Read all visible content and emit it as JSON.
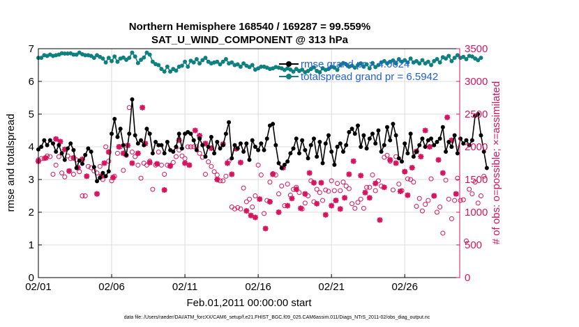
{
  "chart_data": {
    "type": "line",
    "title_line1": "Northern Hemisphere 168540 / 169287 = 99.559%",
    "title_line2": "SAT_U_WIND_COMPONENT @ 313 hPa",
    "xlabel": "Feb.01,2011 00:00:00 start",
    "ylabel_left": "rmse and totalspread",
    "ylabel_right": "# of obs: o=possible; ×=assimilated",
    "footnote": "data file: /Users/raeder/DAI/ATM_forcXX/CAM6_setup/f.e21.FHIST_BGC.f09_025.CAM6assim.011/Diags_NTrS_2011-02/obs_diag_output.nc",
    "xlim": [
      1,
      29.75
    ],
    "ylim_left": [
      0,
      7
    ],
    "ylim_right": [
      0,
      3500
    ],
    "x_ticks": [
      1,
      6,
      11,
      16,
      21,
      26
    ],
    "x_tick_labels": [
      "02/01",
      "02/06",
      "02/11",
      "02/16",
      "02/21",
      "02/26"
    ],
    "y_ticks_left": [
      0,
      1,
      2,
      3,
      4,
      5,
      6,
      7
    ],
    "y_ticks_right": [
      0,
      500,
      1000,
      1500,
      2000,
      2500,
      3000,
      3500
    ],
    "grid": true,
    "legend_position": "top-right",
    "series": [
      {
        "name": "rmse grand pr = 4.0624",
        "axis": "left",
        "color": "#000000",
        "marker": "dot",
        "values": [
          3.92,
          4.0,
          4.2,
          4.05,
          4.2,
          4.1,
          3.85,
          4.05,
          3.8,
          3.6,
          3.95,
          4.1,
          3.9,
          3.35,
          3.58,
          3.48,
          3.75,
          3.95,
          3.85,
          3.38,
          2.95,
          3.05,
          3.2,
          3.1,
          3.25,
          4.4,
          4.85,
          4.3,
          4.55,
          4.05,
          3.75,
          4.4,
          5.45,
          4.35,
          4.1,
          4.2,
          4.05,
          4.55,
          4.4,
          3.8,
          4.15,
          4.05,
          4.05,
          3.8,
          4.15,
          3.9,
          3.85,
          4.0,
          4.4,
          3.95,
          4.4,
          4.45,
          4.4,
          4.2,
          3.9,
          4.25,
          4.05,
          3.7,
          4.0,
          4.3,
          3.8,
          4.15,
          3.95,
          4.05,
          4.4,
          4.75,
          3.65,
          4.05,
          3.95,
          4.1,
          3.85,
          4.1,
          3.6,
          4.2,
          4.0,
          3.9,
          4.1,
          3.9,
          4.25,
          4.65,
          4.7,
          4.05,
          3.5,
          3.35,
          3.45,
          3.55,
          3.8,
          3.95,
          4.25,
          3.8,
          4.2,
          3.9,
          3.65,
          4.05,
          4.25,
          3.7,
          4.15,
          3.5,
          4.1,
          4.35,
          3.85,
          3.45,
          4.0,
          4.1,
          3.85,
          4.05,
          4.45,
          4.55,
          4.4,
          4.65,
          4.0,
          4.35,
          3.95,
          4.25,
          4.4,
          4.1,
          4.5,
          3.85,
          4.05,
          4.6,
          4.2,
          4.7,
          4.35,
          3.65,
          3.55,
          4.1,
          3.8,
          4.4,
          3.7,
          3.85,
          4.05,
          4.25,
          4.0,
          4.2,
          4.25,
          4.05,
          4.15,
          4.25,
          4.6,
          3.85,
          4.15,
          4.0,
          4.35,
          3.8,
          4.25,
          4.1,
          4.2,
          4.05,
          4.2,
          4.95,
          5.0,
          4.35,
          3.85,
          3.35
        ],
        "x_start": 1,
        "x_step": 0.2
      },
      {
        "name": "totalspread grand pr = 6.5942",
        "axis": "left",
        "color": "#0e8080",
        "marker": "dot",
        "values": [
          6.72,
          6.72,
          6.8,
          6.78,
          6.82,
          6.78,
          6.8,
          6.82,
          6.86,
          6.85,
          6.85,
          6.86,
          6.82,
          6.82,
          6.88,
          6.83,
          6.8,
          6.8,
          6.78,
          6.72,
          6.8,
          6.75,
          6.7,
          6.58,
          6.72,
          6.62,
          6.76,
          6.6,
          6.7,
          6.73,
          6.66,
          6.72,
          6.88,
          6.76,
          6.56,
          6.66,
          6.73,
          6.88,
          6.82,
          6.6,
          6.53,
          6.5,
          6.38,
          6.3,
          6.45,
          6.3,
          6.38,
          6.33,
          6.45,
          6.48,
          6.6,
          6.45,
          6.63,
          6.58,
          6.68,
          6.55,
          6.65,
          6.72,
          6.6,
          6.55,
          6.58,
          6.6,
          6.52,
          6.6,
          6.68,
          6.55,
          6.58,
          6.5,
          6.52,
          6.45,
          6.55,
          6.48,
          6.44,
          6.5,
          6.36,
          6.4,
          6.45,
          6.45,
          6.42,
          6.38,
          6.4,
          6.44,
          6.42,
          6.4,
          6.35,
          6.4,
          6.36,
          6.3,
          6.38,
          6.32,
          6.36,
          6.28,
          6.32,
          6.38,
          6.43,
          6.32,
          6.28,
          6.4,
          6.35,
          6.38,
          6.45,
          6.42,
          6.35,
          6.5,
          6.56,
          6.52,
          6.45,
          6.48,
          6.42,
          6.5,
          6.55,
          6.45,
          6.52,
          6.4,
          6.56,
          6.44,
          6.5,
          6.58,
          6.62,
          6.55,
          6.6,
          6.64,
          6.55,
          6.68,
          6.6,
          6.65,
          6.58,
          6.7,
          6.58,
          6.62,
          6.55,
          6.65,
          6.55,
          6.6,
          6.5,
          6.62,
          6.68,
          6.58,
          6.74,
          6.7,
          6.78,
          6.62,
          6.72,
          6.8,
          6.72,
          6.75,
          6.68,
          6.78,
          6.76,
          6.7,
          6.65,
          6.72
        ],
        "x_start": 1,
        "x_step": 0.2
      },
      {
        "name": "# of obs possible",
        "axis": "right",
        "color": "#d6145f",
        "marker": "circle",
        "values": [
          1800,
          1820,
          1820,
          1860,
          1850,
          1580,
          1720,
          1850,
          1600,
          1540,
          1860,
          1820,
          1580,
          1800,
          1620,
          1250,
          1250,
          1700,
          1680,
          1630,
          1600,
          1700,
          1500,
          2000,
          1780,
          1480,
          1550,
          1900,
          2000,
          1640,
          1870,
          2600,
          1920,
          1850,
          1720,
          1520,
          1750,
          1720,
          1780,
          1350,
          1720,
          1920,
          1720,
          1580,
          1720,
          1700,
          1760,
          1850,
          1950,
          1860,
          1820,
          2000,
          2000,
          2000,
          2000,
          1900,
          1840,
          1580,
          1770,
          1700,
          1620,
          1570,
          1480,
          1480,
          1550,
          1780,
          1080,
          1050,
          1070,
          1050,
          1370,
          1160,
          1200,
          1080,
          1250,
          1720,
          1570,
          980,
          1180,
          1460,
          1590,
          1570,
          1280,
          1400,
          1100,
          1430,
          1260,
          1350,
          1380,
          1300,
          1050,
          1140,
          1250,
          1480,
          1160,
          1350,
          1300,
          1180,
          1340,
          1320,
          1480,
          1330,
          1440,
          1330,
          1460,
          1400,
          1360,
          1130,
          1060,
          1150,
          1200,
          1060,
          1380,
          1380,
          1570,
          1330,
          1480,
          1400,
          1840,
          1870,
          1780,
          1340,
          1850,
          1430,
          1330,
          1620,
          1510,
          1500,
          1460,
          1090,
          1210,
          1020,
          1120,
          1180,
          1510,
          1250,
          1000,
          1080,
          680,
          1490,
          1200,
          900,
          1180,
          1520,
          1180,
          1190,
          560,
          1350,
          1280,
          1460,
          1140,
          1250,
          1550
        ],
        "x_start": 1,
        "x_step": 0.2
      },
      {
        "name": "# of obs assimilated",
        "axis": "right",
        "color": "#d6145f",
        "marker": "star",
        "points": [
          [
            1,
            1780
          ],
          [
            1.5,
            1830
          ],
          [
            2.2,
            2120
          ],
          [
            2.5,
            2080
          ],
          [
            2.8,
            1960
          ],
          [
            3.1,
            1630
          ],
          [
            3.4,
            1830
          ],
          [
            3.7,
            1680
          ],
          [
            4,
            1810
          ],
          [
            4.3,
            1550
          ],
          [
            5,
            1280
          ],
          [
            5.3,
            1550
          ],
          [
            5.5,
            1750
          ],
          [
            5.8,
            1920
          ],
          [
            6.1,
            1530
          ],
          [
            6.5,
            2000
          ],
          [
            6.8,
            1900
          ],
          [
            7.1,
            2020
          ],
          [
            7.4,
            1750
          ],
          [
            7.8,
            1900
          ],
          [
            8.1,
            2600
          ],
          [
            8.3,
            2050
          ],
          [
            8.6,
            1760
          ],
          [
            9.1,
            1740
          ],
          [
            9.6,
            1340
          ],
          [
            10,
            1710
          ],
          [
            10.6,
            2100
          ],
          [
            11,
            1750
          ],
          [
            11.3,
            1720
          ],
          [
            11.7,
            2250
          ],
          [
            12,
            2170
          ],
          [
            12.4,
            2050
          ],
          [
            12.8,
            1980
          ],
          [
            13.2,
            1500
          ],
          [
            13.6,
            2040
          ],
          [
            13.9,
            1750
          ],
          [
            14.2,
            1580
          ],
          [
            14.5,
            1970
          ],
          [
            14.8,
            1760
          ],
          [
            15.2,
            1020
          ],
          [
            15.5,
            950
          ],
          [
            15.8,
            920
          ],
          [
            16.1,
            1200
          ],
          [
            16.5,
            750
          ],
          [
            16.8,
            1160
          ],
          [
            17,
            1580
          ],
          [
            17.4,
            1000
          ],
          [
            17.7,
            1680
          ],
          [
            18,
            1100
          ],
          [
            18.3,
            1210
          ],
          [
            18.6,
            1350
          ],
          [
            18.9,
            1060
          ],
          [
            19.2,
            1280
          ],
          [
            19.5,
            1600
          ],
          [
            19.8,
            1450
          ],
          [
            20,
            1130
          ],
          [
            20.3,
            1450
          ],
          [
            20.6,
            960
          ],
          [
            21,
            1100
          ],
          [
            21.3,
            1180
          ],
          [
            21.6,
            1050
          ],
          [
            21.9,
            1220
          ],
          [
            22.2,
            1580
          ],
          [
            22.5,
            1780
          ],
          [
            23,
            1560
          ],
          [
            23.3,
            1300
          ],
          [
            23.6,
            1220
          ],
          [
            24,
            1440
          ],
          [
            24.3,
            880
          ],
          [
            24.6,
            1380
          ],
          [
            25,
            1800
          ],
          [
            25.4,
            1750
          ],
          [
            25.7,
            1320
          ],
          [
            26,
            1620
          ],
          [
            26.2,
            1260
          ],
          [
            26.5,
            1680
          ],
          [
            26.8,
            1930
          ],
          [
            27.1,
            1850
          ],
          [
            27.4,
            2250
          ],
          [
            27.7,
            2000
          ],
          [
            28,
            1250
          ],
          [
            28.3,
            1800
          ],
          [
            28.6,
            1600
          ],
          [
            28.9,
            2450
          ],
          [
            29.2,
            2100
          ],
          [
            29.5,
            1280
          ]
        ]
      }
    ]
  }
}
